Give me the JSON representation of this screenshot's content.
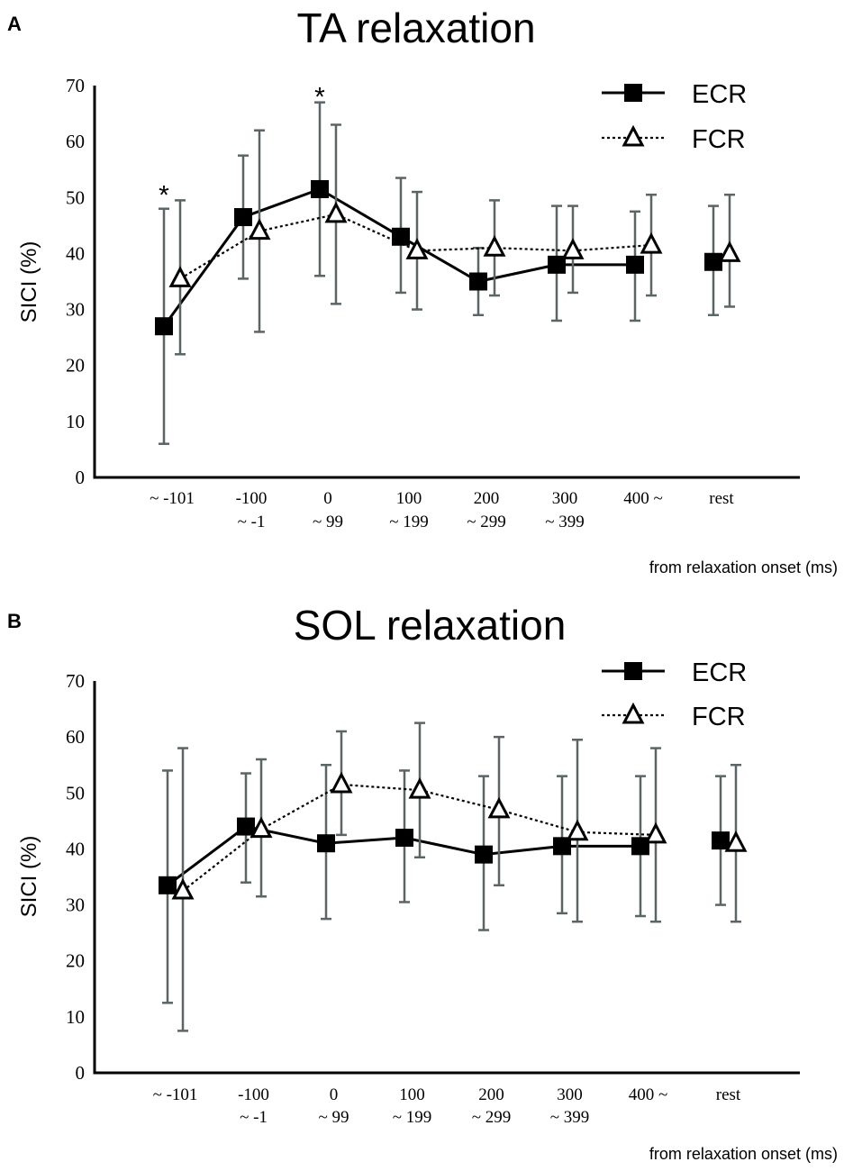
{
  "chart_data": [
    {
      "panel": "A",
      "type": "line",
      "title": "TA relaxation",
      "ylabel": "SICI (%)",
      "xlabel": "from relaxation onset (ms)",
      "ylim": [
        0,
        70
      ],
      "yticks": [
        0,
        10,
        20,
        30,
        40,
        50,
        60,
        70
      ],
      "categories": [
        [
          "~  -101",
          ""
        ],
        [
          "-100",
          "~  -1"
        ],
        [
          "0",
          "~ 99"
        ],
        [
          "100",
          "~ 199"
        ],
        [
          "200",
          "~ 299"
        ],
        [
          "300",
          "~ 399"
        ],
        [
          "400 ~",
          ""
        ],
        [
          "rest",
          ""
        ]
      ],
      "series": [
        {
          "name": "ECR",
          "marker": "filled-square",
          "line": "solid",
          "values": [
            27,
            46.5,
            51.5,
            43,
            35,
            38,
            38,
            38.5
          ],
          "error_low": [
            6,
            35.5,
            36,
            33,
            29,
            28,
            28,
            29
          ],
          "error_high": [
            48,
            57.5,
            67,
            53.5,
            41,
            48.5,
            47.5,
            48.5
          ],
          "connected_points": 7
        },
        {
          "name": "FCR",
          "marker": "open-triangle",
          "line": "dotted",
          "values": [
            35.5,
            44,
            47,
            40.5,
            41,
            40.5,
            41.5,
            40
          ],
          "error_low": [
            22,
            26,
            31,
            30,
            32.5,
            33,
            32.5,
            30.5
          ],
          "error_high": [
            49.5,
            62,
            63,
            51,
            49.5,
            48.5,
            50.5,
            50.5
          ],
          "connected_points": 7
        }
      ],
      "annotations": [
        {
          "text": "*",
          "category_index": 0
        },
        {
          "text": "*",
          "category_index": 2
        }
      ]
    },
    {
      "panel": "B",
      "type": "line",
      "title": "SOL relaxation",
      "ylabel": "SICI (%)",
      "xlabel": "from relaxation onset (ms)",
      "ylim": [
        0,
        70
      ],
      "yticks": [
        0,
        10,
        20,
        30,
        40,
        50,
        60,
        70
      ],
      "categories": [
        [
          "~  -101",
          ""
        ],
        [
          "-100",
          "~  -1"
        ],
        [
          "0",
          "~ 99"
        ],
        [
          "100",
          "~ 199"
        ],
        [
          "200",
          "~ 299"
        ],
        [
          "300",
          "~ 399"
        ],
        [
          "400 ~",
          ""
        ],
        [
          "rest",
          ""
        ]
      ],
      "series": [
        {
          "name": "ECR",
          "marker": "filled-square",
          "line": "solid",
          "values": [
            33.5,
            44,
            41,
            42,
            39,
            40.5,
            40.5,
            41.5
          ],
          "error_low": [
            12.5,
            34,
            27.5,
            30.5,
            25.5,
            28.5,
            28,
            30
          ],
          "error_high": [
            54,
            53.5,
            55,
            54,
            53,
            53,
            53,
            53
          ],
          "connected_points": 7
        },
        {
          "name": "FCR",
          "marker": "open-triangle",
          "line": "dotted",
          "values": [
            32.5,
            43.5,
            51.5,
            50.5,
            47,
            43,
            42.5,
            41
          ],
          "error_low": [
            7.5,
            31.5,
            42.5,
            38.5,
            33.5,
            27,
            27,
            27
          ],
          "error_high": [
            58,
            56,
            61,
            62.5,
            60,
            59.5,
            58,
            55
          ],
          "connected_points": 7
        }
      ],
      "annotations": []
    }
  ]
}
